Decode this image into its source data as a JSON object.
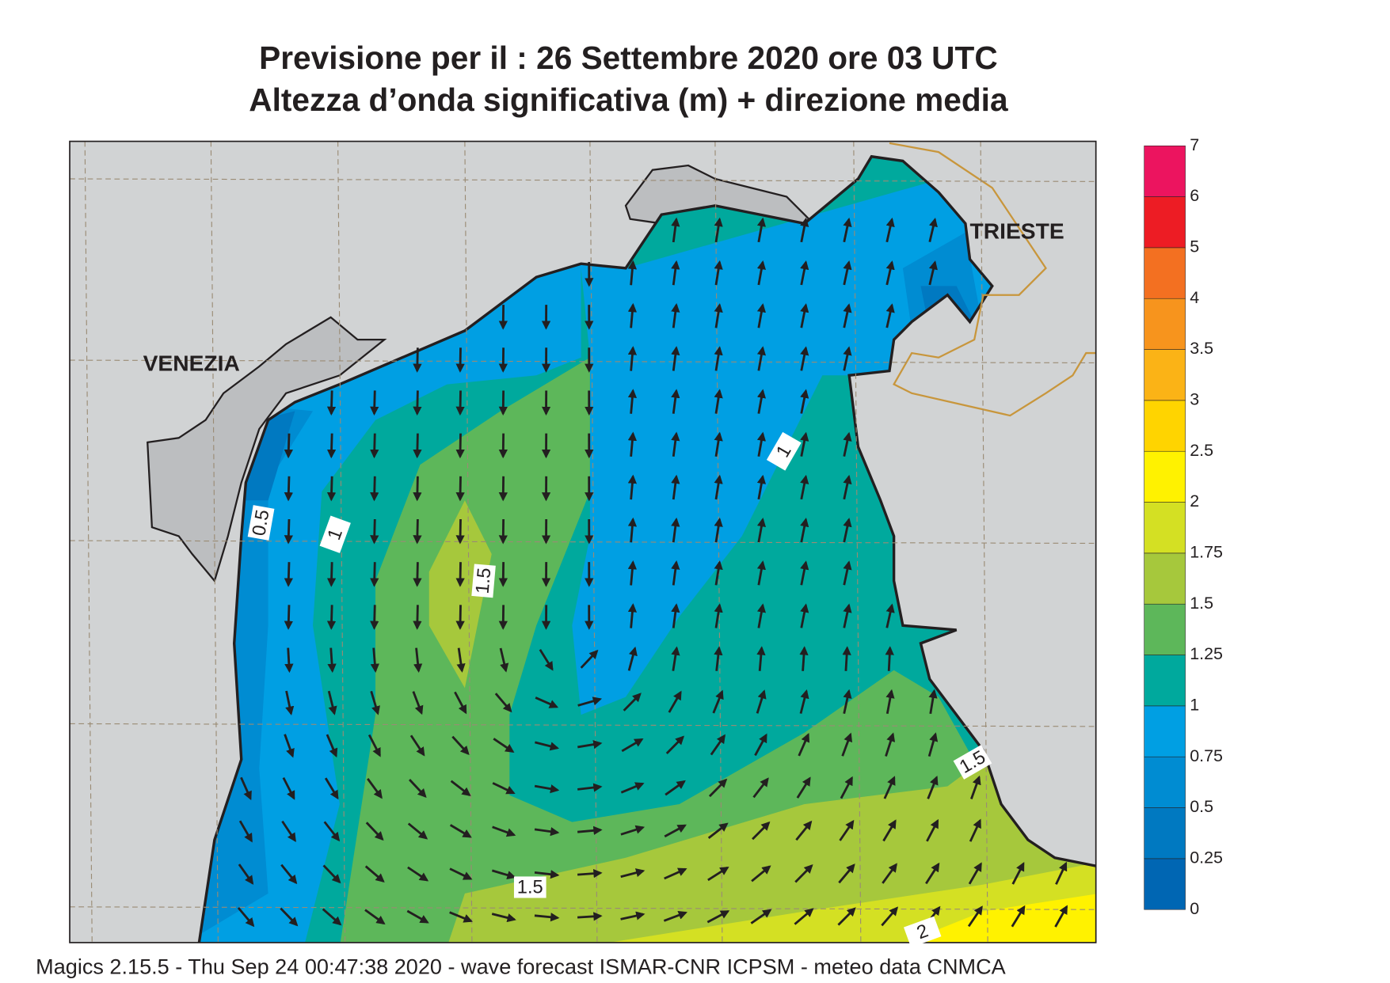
{
  "header": {
    "title": "Previsione per il  :  26 Settembre 2020   ore 03 UTC",
    "subtitle": "Altezza d’onda significativa (m) + direzione media"
  },
  "map": {
    "places": [
      "VENEZIA",
      "TRIESTE"
    ],
    "contour_labels": [
      "0.5",
      "1",
      "1.5",
      "1",
      "1.5",
      "1.5",
      "2"
    ]
  },
  "colorbar": {
    "levels": [
      0,
      0.25,
      0.5,
      0.75,
      1,
      1.25,
      1.5,
      1.75,
      2,
      2.5,
      3,
      3.5,
      4,
      5,
      6,
      7
    ],
    "colors": [
      "#0066b3",
      "#0079c1",
      "#008cd2",
      "#009fe3",
      "#00a99d",
      "#5db75a",
      "#a6c83c",
      "#d4e023",
      "#fff200",
      "#ffd400",
      "#fbb316",
      "#f7941d",
      "#f37021",
      "#ed1c24",
      "#ec145f"
    ]
  },
  "footer": "Magics 2.15.5 - Thu Sep 24 00:47:38 2020 - wave forecast  ISMAR-CNR  ICPSM - meteo data   CNMCA"
}
